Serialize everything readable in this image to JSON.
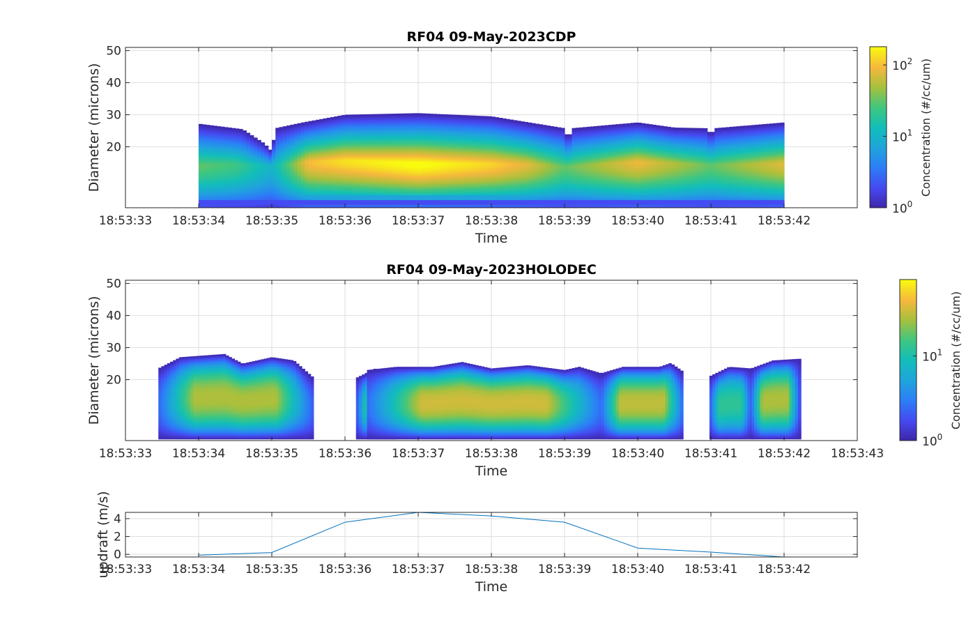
{
  "chart_data": [
    {
      "type": "heatmap",
      "title": "RF04 09-May-2023CDP",
      "xlabel": "Time",
      "ylabel": "Diameter (microns)",
      "x_ticks": [
        "18:53:33",
        "18:53:34",
        "18:53:35",
        "18:53:36",
        "18:53:37",
        "18:53:38",
        "18:53:39",
        "18:53:40",
        "18:53:41",
        "18:53:42"
      ],
      "y_ticks": [
        20,
        30,
        40,
        50
      ],
      "ylim": [
        1,
        51
      ],
      "xlim_seconds": [
        0,
        9.0
      ],
      "grid": true,
      "colorscale": "parula",
      "color_scale": "log",
      "colorbar": {
        "label": "Concentration (#/cc/um)",
        "ticks": [
          "10",
          "10",
          "10"
        ],
        "tick_exponents": [
          "0",
          "1",
          "2"
        ],
        "range": [
          1,
          180
        ]
      },
      "envelope_top": [
        [
          1,
          27.2
        ],
        [
          1.6,
          25.5
        ],
        [
          1.9,
          21
        ],
        [
          2,
          18.5
        ],
        [
          2.05,
          25.8
        ],
        [
          2.4,
          27.5
        ],
        [
          3,
          30
        ],
        [
          4,
          30.5
        ],
        [
          5,
          29.5
        ],
        [
          6,
          25.8
        ],
        [
          6.05,
          22
        ],
        [
          6.1,
          25.8
        ],
        [
          7,
          27.6
        ],
        [
          7.5,
          26
        ],
        [
          7.95,
          25.8
        ],
        [
          8,
          23.5
        ],
        [
          8.05,
          25.8
        ],
        [
          9,
          27.6
        ]
      ],
      "peaks": [
        {
          "x": 1.0,
          "d": 14.5,
          "level": 1.5
        },
        {
          "x": 1.5,
          "d": 14.8,
          "level": 1.4
        },
        {
          "x": 2.0,
          "d": 14.2,
          "level": 1.0
        },
        {
          "x": 2.5,
          "d": 15.5,
          "level": 2.0
        },
        {
          "x": 3.0,
          "d": 16.0,
          "level": 2.15
        },
        {
          "x": 4.0,
          "d": 15.0,
          "level": 2.3
        },
        {
          "x": 5.0,
          "d": 15.0,
          "level": 2.1
        },
        {
          "x": 5.5,
          "d": 14.8,
          "level": 1.9
        },
        {
          "x": 6.0,
          "d": 14.0,
          "level": 1.5
        },
        {
          "x": 7.0,
          "d": 15.5,
          "level": 1.95
        },
        {
          "x": 8.0,
          "d": 14.5,
          "level": 1.5
        },
        {
          "x": 9.0,
          "d": 15.0,
          "level": 1.9
        }
      ]
    },
    {
      "type": "heatmap",
      "title": "RF04 09-May-2023HOLODEC",
      "xlabel": "Time",
      "ylabel": "Diameter (microns)",
      "x_ticks": [
        "18:53:33",
        "18:53:34",
        "18:53:35",
        "18:53:36",
        "18:53:37",
        "18:53:38",
        "18:53:39",
        "18:53:40",
        "18:53:41",
        "18:53:42",
        "18:53:43"
      ],
      "y_ticks": [
        20,
        30,
        40,
        50
      ],
      "ylim": [
        1,
        51
      ],
      "xlim_seconds": [
        0,
        10.0
      ],
      "grid": true,
      "colorscale": "parula",
      "color_scale": "log",
      "colorbar": {
        "label": "Concentration (#/cc/um)",
        "ticks": [
          "10",
          "10"
        ],
        "tick_exponents": [
          "0",
          "1"
        ],
        "range": [
          1,
          80
        ]
      },
      "blobs": [
        {
          "x": [
            0.45,
            2.55
          ],
          "top": [
            [
              0.45,
              23.5
            ],
            [
              0.75,
              27
            ],
            [
              1.35,
              28
            ],
            [
              1.6,
              25
            ],
            [
              2.0,
              27
            ],
            [
              2.3,
              26
            ],
            [
              2.55,
              21
            ]
          ],
          "bottom": 1.5,
          "level": 1.45
        },
        {
          "x": [
            3.15,
            3.68
          ],
          "top": [
            [
              3.15,
              20.5
            ],
            [
              3.42,
              23.5
            ],
            [
              3.68,
              20.5
            ]
          ],
          "bottom": 1.5,
          "level": 1.0
        },
        {
          "x": [
            3.3,
            6.5
          ],
          "top": [
            [
              3.3,
              23
            ],
            [
              3.7,
              24
            ],
            [
              4.2,
              24
            ],
            [
              4.6,
              25.5
            ],
            [
              5.0,
              23.5
            ],
            [
              5.5,
              24.5
            ],
            [
              6.0,
              23
            ],
            [
              6.2,
              24
            ],
            [
              6.5,
              22
            ]
          ],
          "bottom": 1.5,
          "level": 1.55
        },
        {
          "x": [
            6.5,
            7.62
          ],
          "top": [
            [
              6.5,
              22
            ],
            [
              6.8,
              24
            ],
            [
              7.3,
              24
            ],
            [
              7.45,
              25.2
            ],
            [
              7.62,
              22.5
            ]
          ],
          "bottom": 1.5,
          "level": 1.5
        },
        {
          "x": [
            7.98,
            8.55
          ],
          "top": [
            [
              7.98,
              21
            ],
            [
              8.25,
              24
            ],
            [
              8.55,
              23.5
            ]
          ],
          "bottom": 1.5,
          "level": 1.1
        },
        {
          "x": [
            8.55,
            9.2
          ],
          "top": [
            [
              8.55,
              23.5
            ],
            [
              8.85,
              26
            ],
            [
              9.2,
              26.5
            ]
          ],
          "bottom": 1.5,
          "level": 1.45
        }
      ]
    },
    {
      "type": "line",
      "title": "",
      "xlabel": "Time",
      "ylabel": "updraft (m/s)",
      "x_ticks": [
        "18:53:33",
        "18:53:34",
        "18:53:35",
        "18:53:36",
        "18:53:37",
        "18:53:38",
        "18:53:39",
        "18:53:40",
        "18:53:41",
        "18:53:42"
      ],
      "y_ticks": [
        0,
        2,
        4
      ],
      "ylim": [
        -0.3,
        4.7
      ],
      "xlim_seconds": [
        0,
        10.0
      ],
      "grid": true,
      "series": [
        {
          "color": "#0072BD",
          "x_seconds": [
            1,
            2,
            3,
            4,
            5,
            6,
            7,
            8,
            9
          ],
          "values": [
            -0.1,
            0.2,
            3.6,
            4.7,
            4.3,
            3.6,
            0.7,
            0.25,
            -0.3
          ]
        }
      ]
    }
  ]
}
